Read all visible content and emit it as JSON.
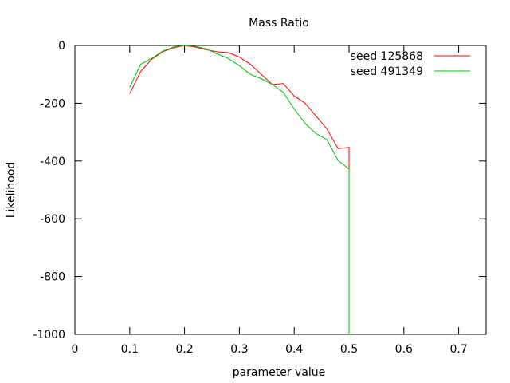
{
  "chart_data": {
    "type": "line",
    "title": "Mass Ratio",
    "xlabel": "parameter value",
    "ylabel": "Likelihood",
    "xlim": [
      0,
      0.75
    ],
    "ylim": [
      -1000,
      0
    ],
    "xticks": [
      0,
      0.1,
      0.2,
      0.3,
      0.4,
      0.5,
      0.6,
      0.7
    ],
    "xtick_labels": [
      "0",
      "0.1",
      "0.2",
      "0.3",
      "0.4",
      "0.5",
      "0.6",
      "0.7"
    ],
    "yticks": [
      0,
      -200,
      -400,
      -600,
      -800,
      -1000
    ],
    "ytick_labels": [
      "0",
      "-200",
      "-400",
      "-600",
      "-800",
      "-1000"
    ],
    "grid": false,
    "legend_position": "top-right",
    "series": [
      {
        "name": "seed 125868",
        "color": "#ff0000",
        "points": [
          [
            0.1,
            -167
          ],
          [
            0.12,
            -90
          ],
          [
            0.14,
            -48
          ],
          [
            0.16,
            -22
          ],
          [
            0.18,
            -8
          ],
          [
            0.2,
            0
          ],
          [
            0.22,
            -6
          ],
          [
            0.24,
            -15
          ],
          [
            0.26,
            -22
          ],
          [
            0.28,
            -25
          ],
          [
            0.3,
            -40
          ],
          [
            0.32,
            -65
          ],
          [
            0.34,
            -100
          ],
          [
            0.36,
            -135
          ],
          [
            0.38,
            -132
          ],
          [
            0.4,
            -175
          ],
          [
            0.42,
            -200
          ],
          [
            0.44,
            -245
          ],
          [
            0.46,
            -290
          ],
          [
            0.48,
            -357
          ],
          [
            0.5,
            -353
          ],
          [
            0.5,
            -428
          ]
        ]
      },
      {
        "name": "seed 491349",
        "color": "#00c000",
        "points": [
          [
            0.1,
            -145
          ],
          [
            0.12,
            -65
          ],
          [
            0.14,
            -45
          ],
          [
            0.16,
            -20
          ],
          [
            0.18,
            -5
          ],
          [
            0.2,
            0
          ],
          [
            0.22,
            -3
          ],
          [
            0.24,
            -12
          ],
          [
            0.26,
            -30
          ],
          [
            0.28,
            -45
          ],
          [
            0.3,
            -70
          ],
          [
            0.32,
            -100
          ],
          [
            0.34,
            -115
          ],
          [
            0.36,
            -135
          ],
          [
            0.38,
            -162
          ],
          [
            0.4,
            -220
          ],
          [
            0.42,
            -270
          ],
          [
            0.44,
            -305
          ],
          [
            0.46,
            -327
          ],
          [
            0.48,
            -398
          ],
          [
            0.5,
            -428
          ],
          [
            0.5,
            -1000
          ]
        ]
      }
    ]
  }
}
